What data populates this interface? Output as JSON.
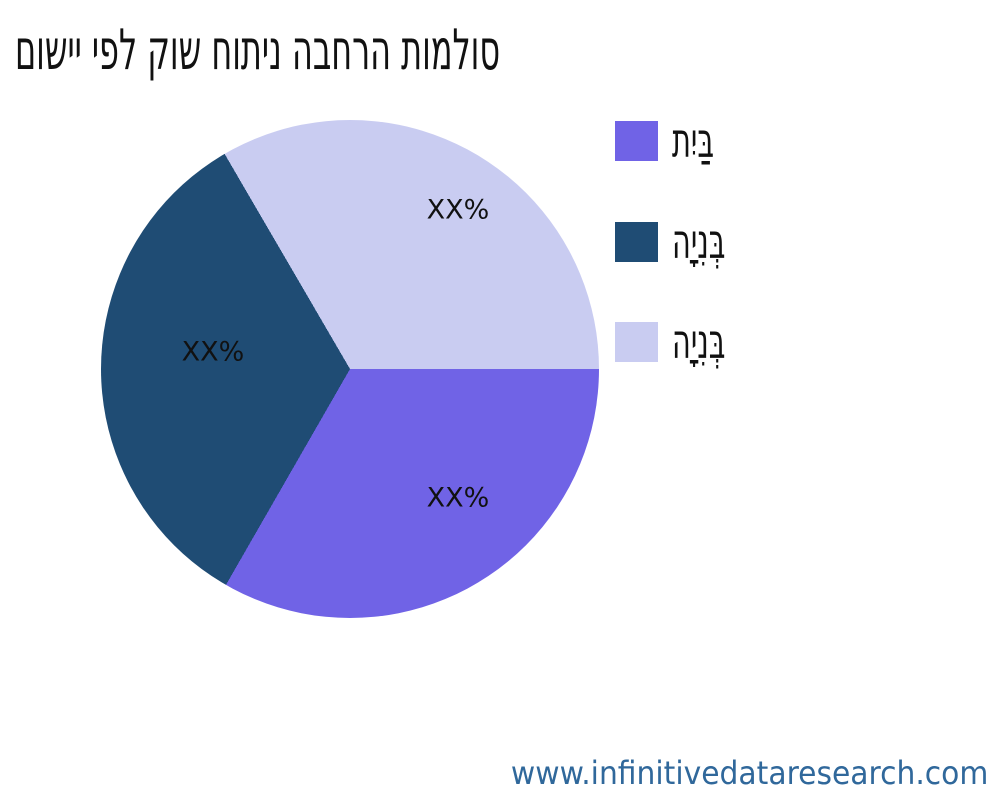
{
  "title": "סולמות הרחבה ניתוח שוק לפי יישום",
  "watermark": {
    "text": "www.infinitivedataresearch.com",
    "color": "#30689B"
  },
  "legend": {
    "position": "right",
    "items": [
      {
        "label": "בַּיִת",
        "color": "#7063E6"
      },
      {
        "label": "בְּנִיָה",
        "color": "#1F4C74"
      },
      {
        "label": "בְּנִיָה",
        "color": "#C9CCF1"
      }
    ]
  },
  "chart_data": {
    "type": "pie",
    "title": "סולמות הרחבה ניתוח שוק לפי יישום",
    "slices": [
      {
        "label": "בַּיִת",
        "value_pct": 33.3,
        "value_label": "XX%",
        "color": "#7063E6",
        "position": "bottom-right"
      },
      {
        "label": "בְּנִיָה",
        "value_pct": 33.3,
        "value_label": "XX%",
        "color": "#1F4C74",
        "position": "left"
      },
      {
        "label": "בְּנִיָה",
        "value_pct": 33.4,
        "value_label": "XX%",
        "color": "#C9CCF1",
        "position": "top"
      }
    ],
    "start_angle_deg": 0,
    "direction": "clockwise",
    "legend_position": "right",
    "background": "#ffffff",
    "text_color": "#111111"
  }
}
